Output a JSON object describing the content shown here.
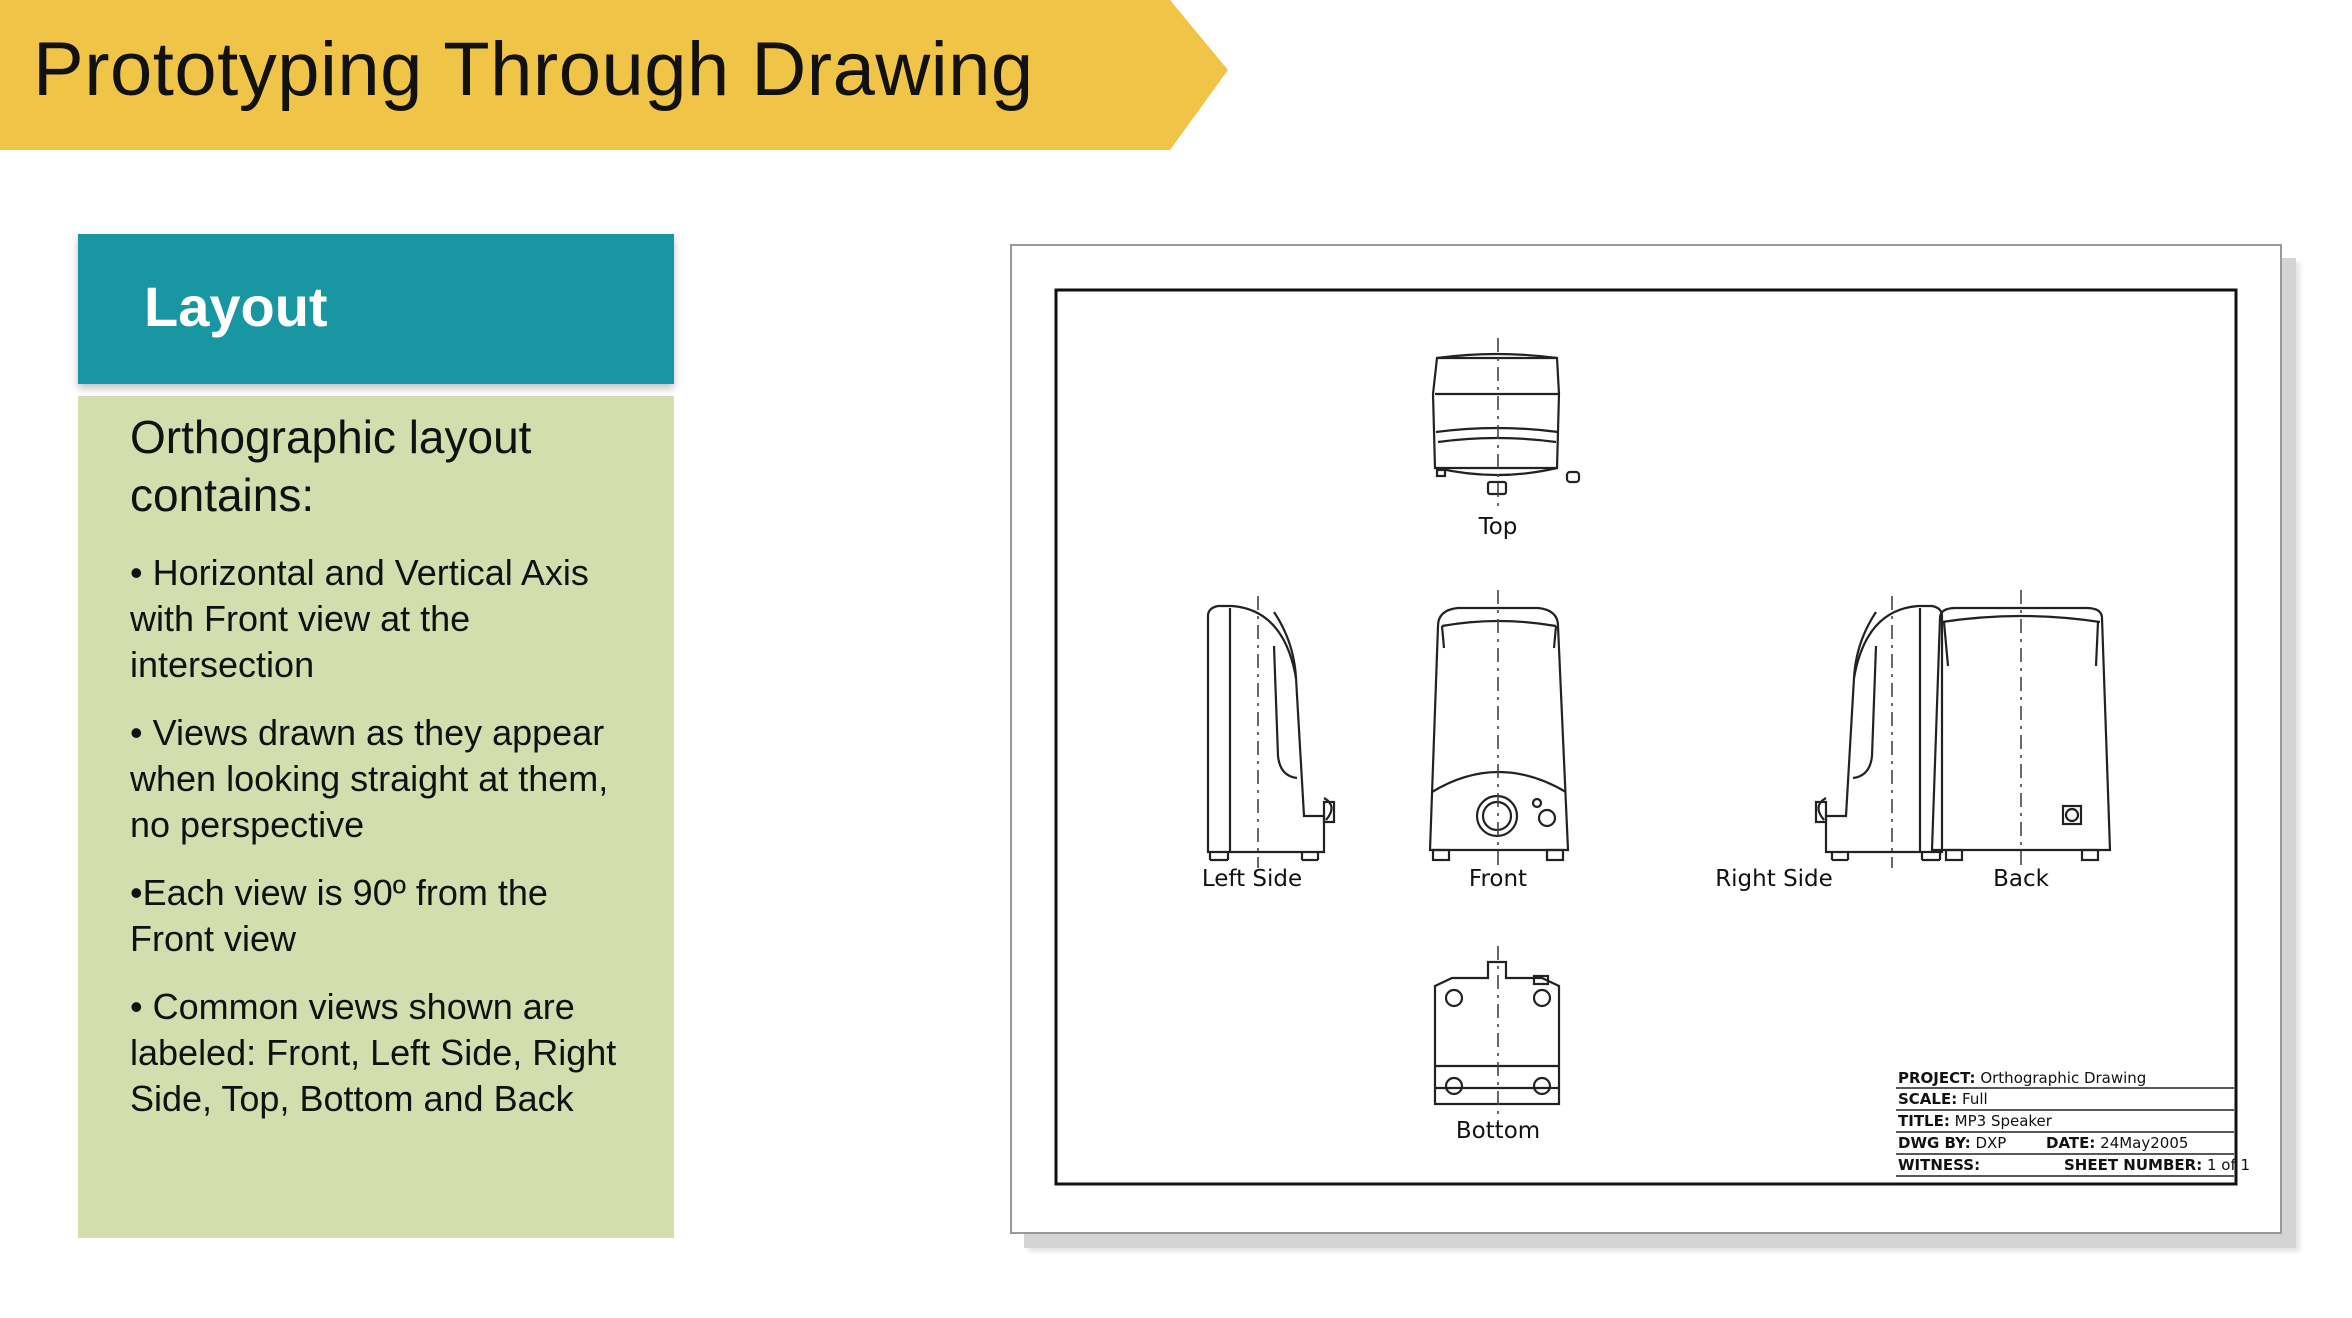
{
  "slide": {
    "title": "Prototyping Through Drawing",
    "banner_color": "#f0c446"
  },
  "panel": {
    "header": "Layout",
    "header_color": "#1896a2",
    "body_color": "#d3deae",
    "intro": "Orthographic layout contains:",
    "bullets": [
      "• Horizontal and Vertical Axis with Front view at the intersection",
      "• Views drawn as they appear when looking straight at them, no perspective",
      "•Each view is 90º from the Front view",
      "• Common views shown are labeled: Front, Left Side, Right Side, Top, Bottom and Back"
    ]
  },
  "drawing": {
    "views": {
      "top": "Top",
      "left": "Left Side",
      "front": "Front",
      "right": "Right Side",
      "back": "Back",
      "bottom": "Bottom"
    },
    "title_block": {
      "project_key": "PROJECT:",
      "project_val": "Orthographic Drawing",
      "scale_key": "SCALE:",
      "scale_val": "Full",
      "title_key": "TITLE:",
      "title_val": "MP3 Speaker",
      "dwg_key": "DWG BY:",
      "dwg_val": "DXP",
      "date_key": "DATE:",
      "date_val": "24May2005",
      "witness_key": "WITNESS:",
      "sheet_key": "SHEET NUMBER:",
      "sheet_val": "1 of 1"
    }
  }
}
